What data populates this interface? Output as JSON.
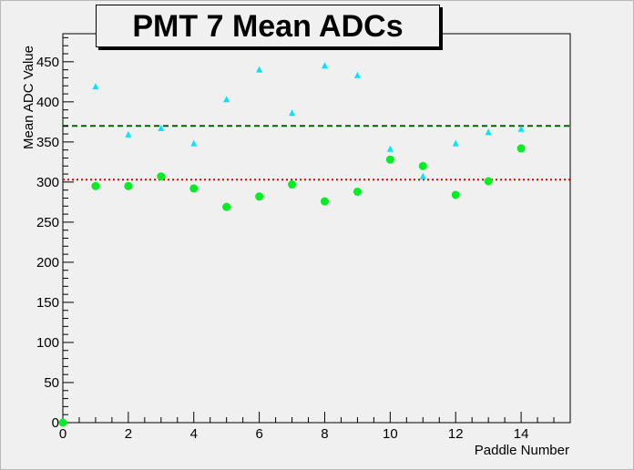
{
  "chart_data": {
    "type": "scatter",
    "title": "PMT 7 Mean ADCs",
    "xlabel": "Paddle Number",
    "ylabel": "Mean ADC Value",
    "xlim": [
      0,
      15.5
    ],
    "ylim": [
      0,
      485
    ],
    "x_major_ticks": [
      0,
      2,
      4,
      6,
      8,
      10,
      12,
      14
    ],
    "x_tick_labels": [
      "0",
      "2",
      "4",
      "6",
      "8",
      "10",
      "12",
      "14"
    ],
    "y_major_ticks": [
      0,
      50,
      100,
      150,
      200,
      250,
      300,
      350,
      400,
      450
    ],
    "y_tick_labels": [
      "0",
      "50",
      "100",
      "150",
      "200",
      "250",
      "300",
      "350",
      "400",
      "450"
    ],
    "grid": false,
    "legend": "none",
    "series": [
      {
        "marker": "triangle",
        "color": "#00e5ff",
        "x": [
          1,
          2,
          3,
          4,
          5,
          6,
          7,
          8,
          9,
          10,
          11,
          12,
          13,
          14
        ],
        "y": [
          419,
          359,
          367,
          348,
          403,
          440,
          386,
          445,
          433,
          341,
          307,
          348,
          362,
          366
        ]
      },
      {
        "marker": "circle",
        "color": "#00ee22",
        "x": [
          0,
          1,
          2,
          3,
          4,
          5,
          6,
          7,
          8,
          9,
          10,
          11,
          12,
          13,
          14
        ],
        "y": [
          0,
          295,
          295,
          307,
          292,
          269,
          282,
          297,
          276,
          288,
          328,
          320,
          284,
          301,
          342
        ]
      }
    ],
    "reference_lines": [
      {
        "y": 370,
        "color": "#006400",
        "style": "dashed"
      },
      {
        "y": 303,
        "color": "#e00000",
        "style": "dotted"
      }
    ]
  }
}
